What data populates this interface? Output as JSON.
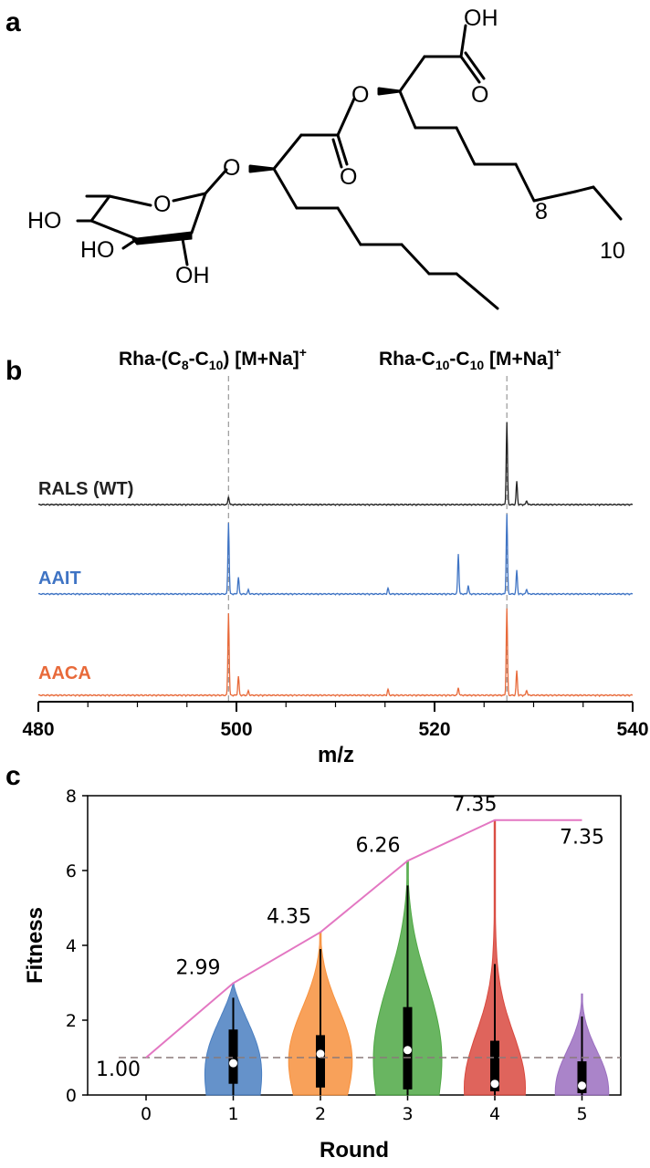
{
  "panels": {
    "a": {
      "label": "a",
      "atoms": [
        "OH",
        "O",
        "O",
        "O",
        "O",
        "O",
        "HO",
        "HO",
        "OH"
      ],
      "numbers": [
        "8",
        "10"
      ]
    },
    "b": {
      "label": "b",
      "peak1_label": "Rha-(C8-C10) [M+Na]+",
      "peak2_label": "Rha-C10-C10 [M+Na]+",
      "xlabel": "m/z",
      "xticks": [
        480,
        500,
        520,
        540
      ]
    },
    "c": {
      "label": "c"
    }
  },
  "chart_data": [
    {
      "type": "line",
      "title": "",
      "xlabel": "m/z",
      "xlim": [
        480,
        540
      ],
      "markers": [
        499.2,
        527.3
      ],
      "series": [
        {
          "name": "RALS (WT)",
          "color": "#222222",
          "peaks": [
            [
              499.2,
              0.1
            ],
            [
              527.3,
              1.0
            ],
            [
              528.3,
              0.28
            ],
            [
              529.3,
              0.05
            ]
          ]
        },
        {
          "name": "AAIT",
          "color": "#3f74c4",
          "peaks": [
            [
              499.2,
              0.85
            ],
            [
              500.2,
              0.2
            ],
            [
              501.2,
              0.05
            ],
            [
              515.3,
              0.07
            ],
            [
              522.4,
              0.48
            ],
            [
              523.4,
              0.1
            ],
            [
              527.3,
              0.95
            ],
            [
              528.3,
              0.28
            ],
            [
              529.3,
              0.06
            ]
          ]
        },
        {
          "name": "AACA",
          "color": "#e86a3a",
          "peaks": [
            [
              499.2,
              0.95
            ],
            [
              500.2,
              0.22
            ],
            [
              501.2,
              0.05
            ],
            [
              515.3,
              0.07
            ],
            [
              522.4,
              0.09
            ],
            [
              527.3,
              1.0
            ],
            [
              528.3,
              0.28
            ],
            [
              529.3,
              0.06
            ]
          ]
        }
      ]
    },
    {
      "type": "violin",
      "xlabel": "Round",
      "ylabel": "Fitness",
      "ylim": [
        0,
        8
      ],
      "yticks": [
        0,
        2,
        4,
        6,
        8
      ],
      "categories": [
        "0",
        "1",
        "2",
        "3",
        "4",
        "5"
      ],
      "baseline": 1.0,
      "max_line": {
        "x": [
          0,
          1,
          2,
          3,
          4,
          5
        ],
        "y": [
          1.0,
          2.99,
          4.35,
          6.26,
          7.35,
          7.35
        ],
        "labels": [
          "1.00",
          "2.99",
          "4.35",
          "6.26",
          "7.35",
          "7.35"
        ],
        "color": "#e377c2"
      },
      "violins": [
        {
          "round": 1,
          "color": "#4a7fc1",
          "max": 2.99,
          "median": 0.85,
          "q1": 0.3,
          "q3": 1.75,
          "whisker_hi": 2.6
        },
        {
          "round": 2,
          "color": "#f7913d",
          "max": 4.35,
          "median": 1.1,
          "q1": 0.2,
          "q3": 1.6,
          "whisker_hi": 3.9
        },
        {
          "round": 3,
          "color": "#4fa845",
          "max": 6.26,
          "median": 1.2,
          "q1": 0.15,
          "q3": 2.35,
          "whisker_hi": 5.6
        },
        {
          "round": 4,
          "color": "#d9493f",
          "max": 7.35,
          "median": 0.3,
          "q1": 0.1,
          "q3": 1.45,
          "whisker_hi": 3.5
        },
        {
          "round": 5,
          "color": "#9b6fc0",
          "max": 2.7,
          "median": 0.25,
          "q1": 0.05,
          "q3": 0.9,
          "whisker_hi": 2.1
        }
      ]
    }
  ]
}
